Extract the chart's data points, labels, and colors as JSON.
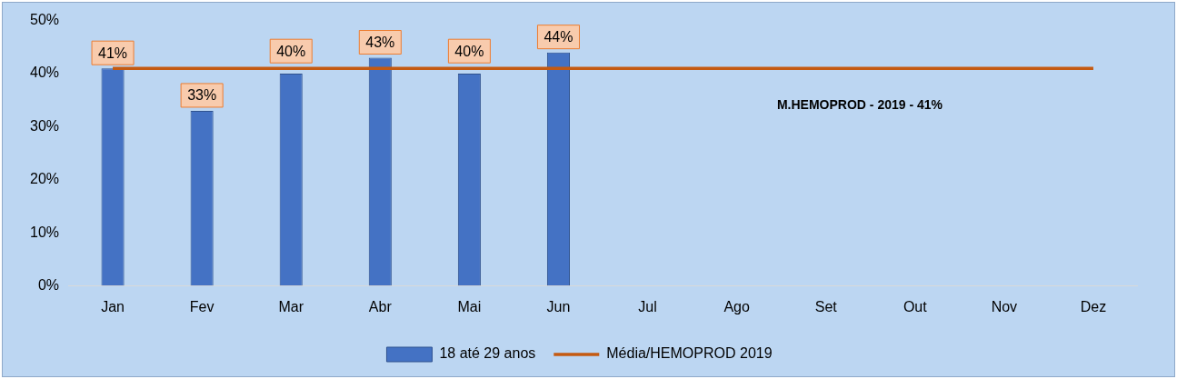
{
  "chart_data": {
    "type": "bar",
    "categories": [
      "Jan",
      "Fev",
      "Mar",
      "Abr",
      "Mai",
      "Jun",
      "Jul",
      "Ago",
      "Set",
      "Out",
      "Nov",
      "Dez"
    ],
    "series": [
      {
        "name": "18 até 29 anos",
        "color": "#4472c4",
        "values": [
          41,
          33,
          40,
          43,
          40,
          44,
          null,
          null,
          null,
          null,
          null,
          null
        ],
        "value_labels": [
          "41%",
          "33%",
          "40%",
          "43%",
          "40%",
          "44%",
          null,
          null,
          null,
          null,
          null,
          null
        ]
      },
      {
        "name": "Média/HEMOPROD 2019",
        "type": "line",
        "color": "#c55a11",
        "values": [
          41,
          41,
          41,
          41,
          41,
          41,
          41,
          41,
          41,
          41,
          41,
          41
        ]
      }
    ],
    "ylim": [
      0,
      50
    ],
    "yticks": [
      {
        "value": 0,
        "label": "0%"
      },
      {
        "value": 10,
        "label": "10%"
      },
      {
        "value": 20,
        "label": "20%"
      },
      {
        "value": 30,
        "label": "30%"
      },
      {
        "value": 40,
        "label": "40%"
      },
      {
        "value": 50,
        "label": "50%"
      }
    ],
    "grid": false,
    "legend": "bottom",
    "marker": "none",
    "annotations": [
      "M.HEMOPROD - 2019 - 41%"
    ]
  }
}
